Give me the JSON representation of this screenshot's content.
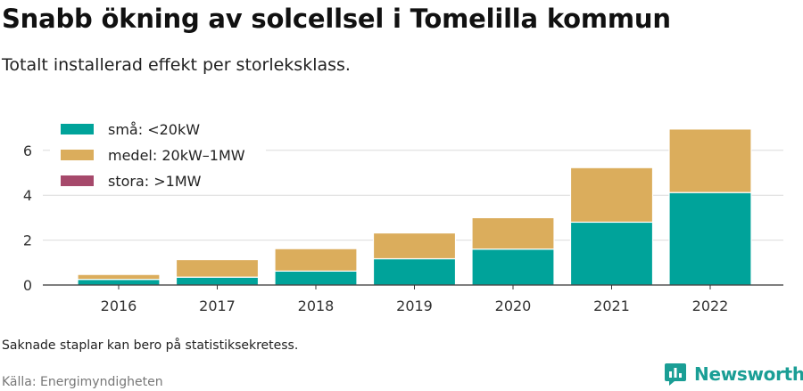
{
  "title": "Snabb ökning av solcellsel i Tomelilla kommun",
  "subtitle": "Totalt installerad effekt per storleksklass.",
  "note": "Saknade staplar kan bero på statistiksekretess.",
  "source": "Källa: Energimyndigheten",
  "brand": {
    "name": "Newsworthy",
    "icon": "newsworthy-logo-icon",
    "color": "#1a9e95"
  },
  "chart_data": {
    "type": "bar",
    "stacked": true,
    "categories": [
      "2016",
      "2017",
      "2018",
      "2019",
      "2020",
      "2021",
      "2022"
    ],
    "series": [
      {
        "name": "små: <20kW",
        "color": "#00a39a",
        "values": [
          0.25,
          0.35,
          0.62,
          1.17,
          1.6,
          2.8,
          4.12
        ]
      },
      {
        "name": "medel: 20kW–1MW",
        "color": "#dbad5c",
        "values": [
          0.22,
          0.78,
          1.0,
          1.15,
          1.4,
          2.43,
          2.83
        ]
      },
      {
        "name": "stora: >1MW",
        "color": "#a6496b",
        "values": [
          0,
          0,
          0,
          0,
          0,
          0,
          0
        ]
      }
    ],
    "yticks": [
      "0",
      "2",
      "4",
      "6"
    ],
    "ylim": [
      0,
      7
    ],
    "grid": true,
    "legend_position": "top-left"
  }
}
